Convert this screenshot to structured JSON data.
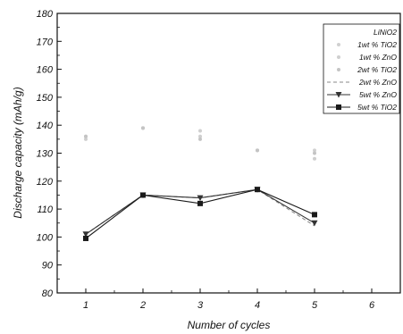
{
  "chart_data": {
    "type": "line",
    "xlabel": "Number of cycles",
    "ylabel": "Discharge capacity (mAh/g)",
    "xlim": [
      0.5,
      6.5
    ],
    "ylim": [
      80,
      180
    ],
    "xticks": [
      1,
      2,
      3,
      4,
      5,
      6
    ],
    "yticks": [
      80,
      90,
      100,
      110,
      120,
      130,
      140,
      150,
      160,
      170,
      180
    ],
    "legend_position": "top-right",
    "series": [
      {
        "name": "LiNiO2",
        "marker": "none",
        "line": "none",
        "color": "#d6d6d6",
        "x": [],
        "y": []
      },
      {
        "name": "1wt % TiO2",
        "marker": "dot",
        "line": "none",
        "color": "#d0d0d0",
        "x": [
          1,
          2,
          3,
          4,
          5
        ],
        "y": [
          136,
          139,
          138,
          131,
          131
        ]
      },
      {
        "name": "1wt % ZnO",
        "marker": "dot",
        "line": "none",
        "color": "#cfcfcf",
        "x": [
          1,
          2,
          3,
          4,
          5
        ],
        "y": [
          135,
          139,
          136,
          131,
          128
        ]
      },
      {
        "name": "2wt % TiO2",
        "marker": "dot",
        "line": "none",
        "color": "#c4c4c4",
        "x": [
          1,
          2,
          3,
          4,
          5
        ],
        "y": [
          136,
          139,
          135,
          131,
          130
        ]
      },
      {
        "name": "2wt % ZnO",
        "marker": "none",
        "line": "dash",
        "color": "#8a8a8a",
        "x": [
          1,
          2,
          3,
          4,
          5
        ],
        "y": [
          101,
          115,
          114,
          117,
          104
        ]
      },
      {
        "name": "5wt % ZnO",
        "marker": "triangle-down",
        "line": "solid",
        "color": "#333333",
        "x": [
          1,
          2,
          3,
          4,
          5
        ],
        "y": [
          101,
          115,
          114,
          117,
          105
        ]
      },
      {
        "name": "5wt % TiO2",
        "marker": "square",
        "line": "solid",
        "color": "#1a1a1a",
        "x": [
          1,
          2,
          3,
          4,
          5
        ],
        "y": [
          99.5,
          115,
          112,
          117,
          108
        ]
      }
    ]
  }
}
